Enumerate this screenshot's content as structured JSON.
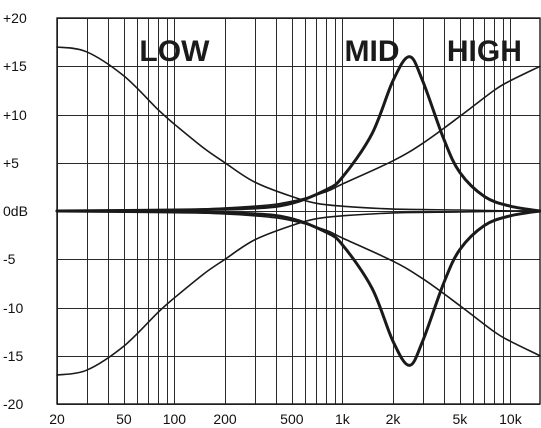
{
  "chart_data": {
    "type": "line",
    "title": "",
    "xlabel": "",
    "ylabel": "",
    "x_scale": "log",
    "xlim": [
      20,
      15000
    ],
    "ylim": [
      -20,
      20
    ],
    "grid": true,
    "legend": "none",
    "x_tick_labels": [
      {
        "value": 20,
        "label": "20"
      },
      {
        "value": 50,
        "label": "50"
      },
      {
        "value": 100,
        "label": "100"
      },
      {
        "value": 200,
        "label": "200"
      },
      {
        "value": 500,
        "label": "500"
      },
      {
        "value": 1000,
        "label": "1k"
      },
      {
        "value": 2000,
        "label": "2k"
      },
      {
        "value": 5000,
        "label": "5k"
      },
      {
        "value": 10000,
        "label": "10k"
      }
    ],
    "y_tick_labels": [
      {
        "value": 20,
        "label": "+20"
      },
      {
        "value": 15,
        "label": "+15"
      },
      {
        "value": 10,
        "label": "+10"
      },
      {
        "value": 5,
        "label": "+5"
      },
      {
        "value": 0,
        "label": "0dB"
      },
      {
        "value": -5,
        "label": "-5"
      },
      {
        "value": -10,
        "label": "-10"
      },
      {
        "value": -15,
        "label": "-15"
      },
      {
        "value": -20,
        "label": "-20"
      }
    ],
    "annotations": [
      {
        "text": "LOW",
        "x": 100,
        "y": 17
      },
      {
        "text": "MID",
        "x": 1500,
        "y": 17
      },
      {
        "text": "HIGH",
        "x": 7000,
        "y": 17
      }
    ],
    "series": [
      {
        "band": "low",
        "bold": false,
        "x": [
          20,
          30,
          50,
          80,
          100,
          150,
          200,
          300,
          500,
          700,
          1000,
          2000,
          5000,
          10000,
          15000
        ],
        "y": [
          17,
          16.5,
          14,
          10.5,
          9,
          6.5,
          5,
          3,
          1.5,
          0.8,
          0.5,
          0.2,
          0.1,
          0,
          0
        ]
      },
      {
        "band": "low",
        "bold": false,
        "x": [
          20,
          30,
          50,
          80,
          100,
          150,
          200,
          300,
          500,
          700,
          1000,
          2000,
          5000,
          10000,
          15000
        ],
        "y": [
          -17,
          -16.5,
          -14,
          -10.5,
          -9,
          -6.5,
          -5,
          -3,
          -1.5,
          -0.8,
          -0.5,
          -0.2,
          -0.1,
          0,
          0
        ]
      },
      {
        "band": "mid",
        "bold": true,
        "x": [
          20,
          100,
          300,
          500,
          800,
          1000,
          1500,
          2000,
          2500,
          3000,
          4000,
          5000,
          7000,
          10000,
          15000
        ],
        "y": [
          0,
          0.1,
          0.3,
          0.8,
          2.2,
          3.5,
          8,
          13.5,
          16,
          13.5,
          7.5,
          4,
          1.5,
          0.5,
          0
        ]
      },
      {
        "band": "mid",
        "bold": true,
        "x": [
          20,
          100,
          300,
          500,
          800,
          1000,
          1500,
          2000,
          2500,
          3000,
          4000,
          5000,
          7000,
          10000,
          15000
        ],
        "y": [
          0,
          -0.1,
          -0.3,
          -0.8,
          -2.2,
          -3.5,
          -8,
          -13.5,
          -16,
          -13.5,
          -7.5,
          -4,
          -1.5,
          -0.5,
          0
        ]
      },
      {
        "band": "high",
        "bold": false,
        "x": [
          20,
          100,
          300,
          500,
          800,
          1000,
          2000,
          3000,
          5000,
          8000,
          10000,
          15000
        ],
        "y": [
          0,
          0.1,
          0.5,
          1,
          2,
          2.8,
          5.2,
          7,
          9.8,
          12.5,
          13.5,
          15
        ]
      },
      {
        "band": "high",
        "bold": false,
        "x": [
          20,
          100,
          300,
          500,
          800,
          1000,
          2000,
          3000,
          5000,
          8000,
          10000,
          15000
        ],
        "y": [
          0,
          -0.1,
          -0.5,
          -1,
          -2,
          -2.8,
          -5.2,
          -7,
          -9.8,
          -12.5,
          -13.5,
          -15
        ]
      }
    ]
  }
}
